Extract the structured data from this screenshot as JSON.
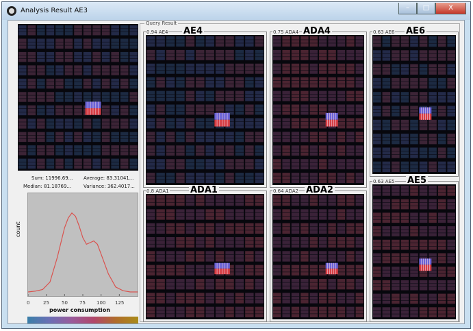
{
  "window": {
    "title": "Analysis Result AE3",
    "minimize_label": "–",
    "maximize_label": "□",
    "close_label": "X"
  },
  "stats": {
    "sum": "Sum:  11996.69...",
    "average": "Average:  83.31041...",
    "median": "Median:  81.18769...",
    "variance": "Variance:  362.4017..."
  },
  "chart_data": {
    "type": "line",
    "xlabel": "power consumption",
    "ylabel": "count",
    "xticks": [
      "0",
      "25",
      "50",
      "75",
      "100",
      "125"
    ],
    "xlim": [
      0,
      150
    ],
    "x": [
      0,
      10,
      20,
      30,
      40,
      50,
      55,
      60,
      65,
      70,
      75,
      80,
      85,
      90,
      95,
      100,
      110,
      120,
      130,
      140,
      150
    ],
    "y": [
      0.0,
      0.01,
      0.03,
      0.12,
      0.42,
      0.78,
      0.9,
      0.96,
      0.92,
      0.8,
      0.66,
      0.58,
      0.6,
      0.62,
      0.58,
      0.46,
      0.22,
      0.06,
      0.015,
      0.0,
      0.0
    ],
    "line_color": "#d9534f",
    "background": "#c0c0c0"
  },
  "query": {
    "label": "Query Result",
    "results": [
      {
        "caption": "0.94 AE4",
        "name": "AE4"
      },
      {
        "caption": "0.75 ADA4",
        "name": "ADA4"
      },
      {
        "caption": "0.63 AE6",
        "name": "AE6"
      },
      {
        "caption": "0.8 ADA1",
        "name": "ADA1"
      },
      {
        "caption": "0.64 ADA2",
        "name": "ADA2"
      },
      {
        "caption": "0.63 AE5",
        "name": "AE5"
      }
    ]
  },
  "colors": {
    "heatmap_base": "#1f2544",
    "heatmap_warm": "#4a2230",
    "highlight_red": "#d43a3a",
    "highlight_blue": "#5a5fd0",
    "colorbar_start": "#3a7fa8",
    "colorbar_end": "#a98b19"
  }
}
